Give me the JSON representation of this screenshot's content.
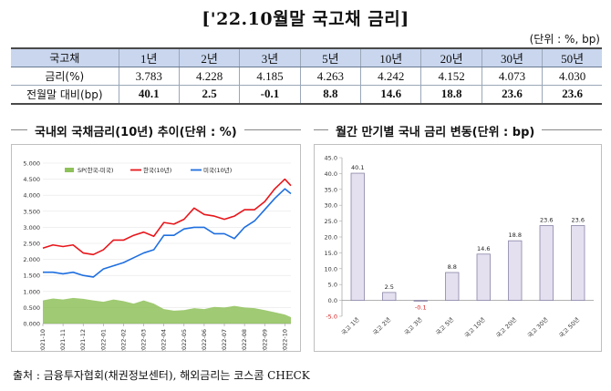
{
  "title": "['22.10월말 국고채 금리]",
  "unit": "(단위 : %, bp)",
  "table": {
    "headers": [
      "국고채",
      "1년",
      "2년",
      "3년",
      "5년",
      "10년",
      "20년",
      "30년",
      "50년"
    ],
    "rows": [
      {
        "label": "금리(%)",
        "values": [
          "3.783",
          "4.228",
          "4.185",
          "4.263",
          "4.242",
          "4.152",
          "4.073",
          "4.030"
        ]
      },
      {
        "label": "전월말 대비(bp)",
        "values": [
          "40.1",
          "2.5",
          "-0.1",
          "8.8",
          "14.6",
          "18.8",
          "23.6",
          "23.6"
        ]
      }
    ]
  },
  "left_title": "국내외 국채금리(10년) 추이(단위 : %)",
  "right_title": "월간 만기별 국내 금리 변동(단위 : bp)",
  "source": "출처 : 금융투자협회(채권정보센터), 해외금리는 코스콤 CHECK",
  "colors": {
    "header_bg": "#c9d6ee",
    "korea": "#e8161b",
    "us": "#1f6fe0",
    "spread": "#8fc15a",
    "bar_fill": "#e4e0f0",
    "bar_stroke": "#8a84a6"
  },
  "chart_data": [
    {
      "type": "line",
      "title": "국내외 국채금리(10년) 추이(단위 : %)",
      "ylim": [
        0,
        5
      ],
      "yticks": [
        "0.000",
        "0.500",
        "1.000",
        "1.500",
        "2.000",
        "2.500",
        "3.000",
        "3.500",
        "4.000",
        "4.500",
        "5.000"
      ],
      "xticks": [
        "2021-10",
        "2021-11",
        "2021-12",
        "2022-01",
        "2022-02",
        "2022-03",
        "2022-04",
        "2022-05",
        "2022-06",
        "2022-07",
        "2022-08",
        "2022-09",
        "2022-10"
      ],
      "legend": [
        "SP(한국-미국)",
        "한국(10년)",
        "미국(10년)"
      ],
      "legend_position": "top",
      "x": [
        0,
        0.5,
        1,
        1.5,
        2,
        2.5,
        3,
        3.5,
        4,
        4.5,
        5,
        5.5,
        6,
        6.5,
        7,
        7.5,
        8,
        8.5,
        9,
        9.5,
        10,
        10.5,
        11,
        11.5,
        12,
        12.3
      ],
      "series": [
        {
          "name": "SP(한국-미국)",
          "type": "area",
          "values": [
            0.72,
            0.78,
            0.75,
            0.8,
            0.77,
            0.72,
            0.68,
            0.75,
            0.7,
            0.62,
            0.72,
            0.62,
            0.45,
            0.4,
            0.42,
            0.48,
            0.45,
            0.52,
            0.5,
            0.55,
            0.5,
            0.48,
            0.42,
            0.35,
            0.28,
            0.2
          ]
        },
        {
          "name": "한국(10년)",
          "values": [
            2.35,
            2.45,
            2.4,
            2.45,
            2.2,
            2.15,
            2.3,
            2.6,
            2.6,
            2.75,
            2.85,
            2.72,
            3.15,
            3.1,
            3.25,
            3.6,
            3.4,
            3.35,
            3.25,
            3.35,
            3.55,
            3.55,
            3.8,
            4.2,
            4.5,
            4.3
          ]
        },
        {
          "name": "미국(10년)",
          "values": [
            1.6,
            1.6,
            1.55,
            1.6,
            1.5,
            1.45,
            1.7,
            1.8,
            1.9,
            2.05,
            2.2,
            2.3,
            2.75,
            2.75,
            2.95,
            3.0,
            3.0,
            2.8,
            2.8,
            2.65,
            3.0,
            3.2,
            3.55,
            3.9,
            4.2,
            4.05
          ]
        }
      ]
    },
    {
      "type": "bar",
      "title": "월간 만기별 국내 금리 변동(단위 : bp)",
      "categories": [
        "국고 1년",
        "국고 2년",
        "국고 3년",
        "국고 5년",
        "국고 10년",
        "국고 20년",
        "국고 30년",
        "국고 50년"
      ],
      "values": [
        40.1,
        2.5,
        -0.1,
        8.8,
        14.6,
        18.8,
        23.6,
        23.6
      ],
      "data_labels": [
        "40.1",
        "2.5",
        "-0.1",
        "8.8",
        "14.6",
        "18.8",
        "23.6",
        "23.6"
      ],
      "ylim": [
        -5,
        45
      ],
      "yticks": [
        "-5.0",
        "0.0",
        "5.0",
        "10.0",
        "15.0",
        "20.0",
        "25.0",
        "30.0",
        "35.0",
        "40.0",
        "45.0"
      ]
    }
  ]
}
